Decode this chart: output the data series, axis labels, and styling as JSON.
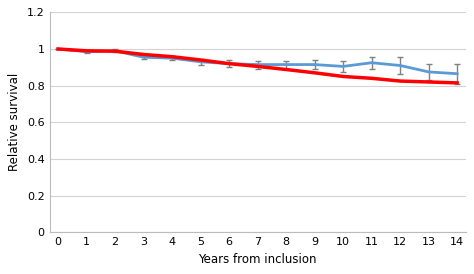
{
  "xlabel": "Years from inclusion",
  "ylabel": "Relative survival",
  "xlim": [
    -0.3,
    14.3
  ],
  "ylim": [
    0,
    1.2
  ],
  "yticks": [
    0,
    0.2,
    0.4,
    0.6,
    0.8,
    1.0,
    1.2
  ],
  "xticks": [
    0,
    1,
    2,
    3,
    4,
    5,
    6,
    7,
    8,
    9,
    10,
    11,
    12,
    13,
    14
  ],
  "blue_line": {
    "x": [
      0,
      1,
      2,
      3,
      4,
      5,
      6,
      7,
      8,
      9,
      10,
      11,
      12,
      13,
      14
    ],
    "y": [
      1.0,
      0.985,
      0.99,
      0.955,
      0.95,
      0.93,
      0.92,
      0.915,
      0.915,
      0.915,
      0.905,
      0.925,
      0.91,
      0.875,
      0.865
    ],
    "yerr_lo": [
      0.0,
      0.008,
      0.008,
      0.012,
      0.012,
      0.015,
      0.018,
      0.022,
      0.022,
      0.025,
      0.028,
      0.032,
      0.045,
      0.045,
      0.055
    ],
    "yerr_hi": [
      0.0,
      0.008,
      0.008,
      0.012,
      0.012,
      0.015,
      0.018,
      0.022,
      0.022,
      0.025,
      0.028,
      0.032,
      0.045,
      0.045,
      0.055
    ],
    "color": "#5B9BD5",
    "linewidth": 2.0
  },
  "red_line": {
    "x": [
      0,
      1,
      2,
      3,
      4,
      5,
      6,
      7,
      8,
      9,
      10,
      11,
      12,
      13,
      14
    ],
    "y": [
      1.0,
      0.99,
      0.988,
      0.97,
      0.958,
      0.94,
      0.92,
      0.905,
      0.888,
      0.87,
      0.85,
      0.84,
      0.825,
      0.82,
      0.815
    ],
    "color": "#FF0000",
    "linewidth": 2.5
  },
  "grid_color": "#d3d3d3",
  "background_color": "#ffffff",
  "error_bar_color": "#808080",
  "error_bar_capsize": 2.5,
  "error_bar_linewidth": 1.0
}
